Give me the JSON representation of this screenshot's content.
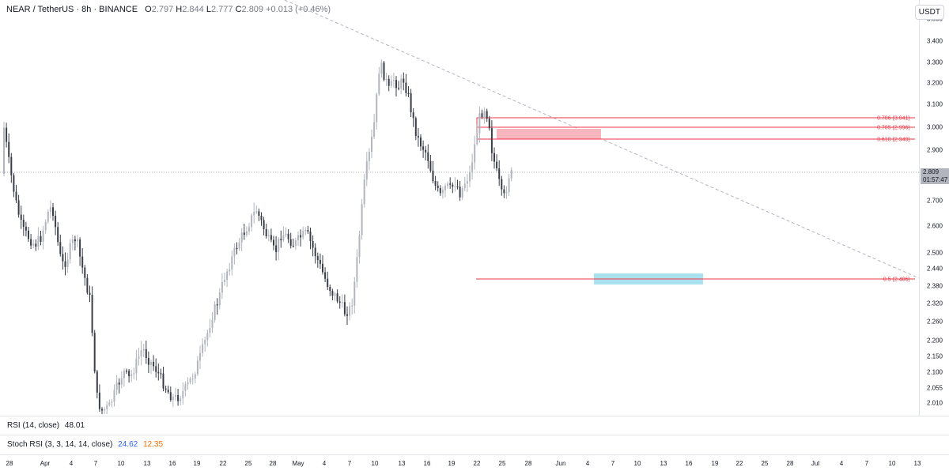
{
  "header": {
    "symbol": "NEAR / TetherUS · 8h · BINANCE",
    "o_label": "O",
    "o_value": "2.797",
    "h_label": "H",
    "h_value": "2.844",
    "l_label": "L",
    "l_value": "2.777",
    "c_label": "C",
    "c_value": "2.809",
    "change": "+0.013 (+0.46%)"
  },
  "currency_button": "USDT",
  "price_scale": {
    "ticks": [
      "3.500",
      "3.400",
      "3.300",
      "3.200",
      "3.100",
      "3.000",
      "2.900",
      "2.700",
      "2.600",
      "2.500",
      "2.440",
      "2.380",
      "2.320",
      "2.260",
      "2.200",
      "2.150",
      "2.100",
      "2.055",
      "2.010"
    ],
    "current_price": "2.809",
    "countdown": "01:57:47"
  },
  "time_axis": {
    "labels": [
      "28",
      "Apr",
      "4",
      "7",
      "10",
      "13",
      "16",
      "19",
      "22",
      "25",
      "28",
      "May",
      "4",
      "7",
      "10",
      "13",
      "16",
      "19",
      "22",
      "25",
      "28",
      "Jun",
      "4",
      "7",
      "10",
      "13",
      "16",
      "19",
      "22",
      "25",
      "28",
      "Jul",
      "4",
      "7",
      "10",
      "13"
    ]
  },
  "fib_levels": [
    {
      "label": "0.786 (3.041)"
    },
    {
      "label": "0.705 (2.996)"
    },
    {
      "label": "0.618 (2.949)"
    },
    {
      "label": "-0.5 (2.406)"
    }
  ],
  "indicators": {
    "rsi_label": "RSI (14, close)",
    "rsi_value": "48.01",
    "stoch_label": "Stoch RSI (3, 3, 14, 14, close)",
    "stoch_k": "24.62",
    "stoch_d": "12.35"
  },
  "colors": {
    "candle_up": "#b2b5be",
    "candle_down": "#3a3d48",
    "fib_line": "#f23645",
    "red_zone": "#f7b6be",
    "blue_zone": "#a9e2ee",
    "trendline": "#b2b5be",
    "stoch_k": "#2962ff",
    "stoch_d": "#ff6d00"
  }
}
